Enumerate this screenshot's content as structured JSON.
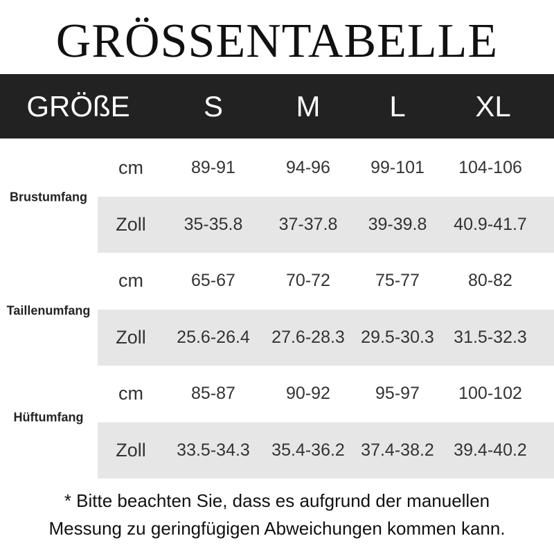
{
  "title": "GRÖSSENTABELLE",
  "header": {
    "size_label": "GRÖßE",
    "sizes": [
      "S",
      "M",
      "L",
      "XL"
    ]
  },
  "groups": [
    {
      "label": "Brustumfang",
      "rows": [
        {
          "unit": "cm",
          "values": [
            "89-91",
            "94-96",
            "99-101",
            "104-106"
          ]
        },
        {
          "unit": "Zoll",
          "values": [
            "35-35.8",
            "37-37.8",
            "39-39.8",
            "40.9-41.7"
          ]
        }
      ]
    },
    {
      "label": "Taillenumfang",
      "rows": [
        {
          "unit": "cm",
          "values": [
            "65-67",
            "70-72",
            "75-77",
            "80-82"
          ]
        },
        {
          "unit": "Zoll",
          "values": [
            "25.6-26.4",
            "27.6-28.3",
            "29.5-30.3",
            "31.5-32.3"
          ]
        }
      ]
    },
    {
      "label": "Hüftumfang",
      "rows": [
        {
          "unit": "cm",
          "values": [
            "85-87",
            "90-92",
            "95-97",
            "100-102"
          ]
        },
        {
          "unit": "Zoll",
          "values": [
            "33.5-34.3",
            "35.4-36.2",
            "37.4-38.2",
            "39.4-40.2"
          ]
        }
      ]
    }
  ],
  "footer": {
    "line1": "* Bitte beachten Sie, dass es aufgrund der manuellen",
    "line2": "Messung zu geringfügigen Abweichungen kommen kann."
  },
  "colors": {
    "header_bg": "#222222",
    "stripe": "#e6e6e6"
  }
}
